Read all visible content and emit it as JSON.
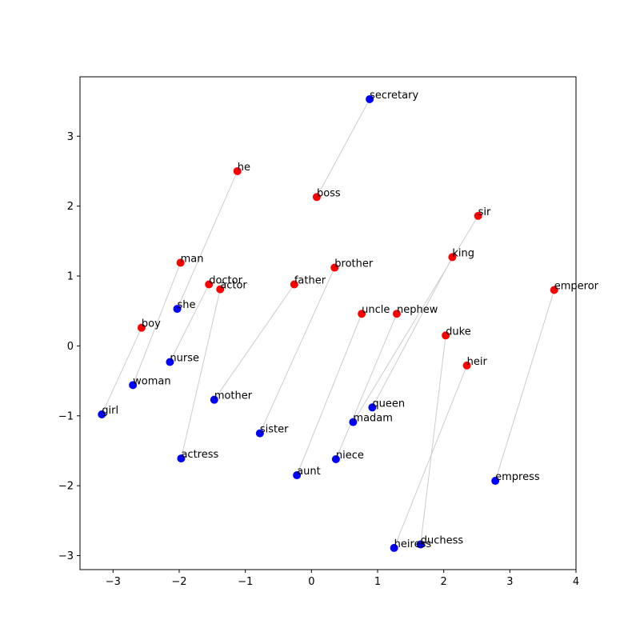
{
  "chart_data": {
    "type": "scatter",
    "title": "",
    "xlabel": "",
    "ylabel": "",
    "xlim": [
      -3.5,
      4.0
    ],
    "ylim": [
      -3.2,
      3.85
    ],
    "xticks": [
      -3,
      -2,
      -1,
      0,
      1,
      2,
      3,
      4
    ],
    "yticks": [
      -3,
      -2,
      -1,
      0,
      1,
      2,
      3
    ],
    "grid": false,
    "legend": "none",
    "colors": {
      "male": "#ff0000",
      "female": "#0000ff",
      "link": "#cccccc"
    },
    "series": [
      {
        "group": "male",
        "points": [
          {
            "label": "he",
            "x": -1.12,
            "y": 2.5
          },
          {
            "label": "boss",
            "x": 0.08,
            "y": 2.13
          },
          {
            "label": "man",
            "x": -1.98,
            "y": 1.19
          },
          {
            "label": "doctor",
            "x": -1.55,
            "y": 0.88
          },
          {
            "label": "actor",
            "x": -1.38,
            "y": 0.81
          },
          {
            "label": "father",
            "x": -0.26,
            "y": 0.88
          },
          {
            "label": "brother",
            "x": 0.35,
            "y": 1.12
          },
          {
            "label": "boy",
            "x": -2.57,
            "y": 0.26
          },
          {
            "label": "sir",
            "x": 2.52,
            "y": 1.86
          },
          {
            "label": "king",
            "x": 2.13,
            "y": 1.27
          },
          {
            "label": "uncle",
            "x": 0.76,
            "y": 0.46
          },
          {
            "label": "nephew",
            "x": 1.29,
            "y": 0.46
          },
          {
            "label": "duke",
            "x": 2.03,
            "y": 0.15
          },
          {
            "label": "heir",
            "x": 2.35,
            "y": -0.28
          },
          {
            "label": "emperor",
            "x": 3.67,
            "y": 0.8
          }
        ]
      },
      {
        "group": "female",
        "points": [
          {
            "label": "secretary",
            "x": 0.88,
            "y": 3.53
          },
          {
            "label": "she",
            "x": -2.03,
            "y": 0.53
          },
          {
            "label": "nurse",
            "x": -2.14,
            "y": -0.23
          },
          {
            "label": "woman",
            "x": -2.7,
            "y": -0.56
          },
          {
            "label": "girl",
            "x": -3.17,
            "y": -0.98
          },
          {
            "label": "mother",
            "x": -1.47,
            "y": -0.77
          },
          {
            "label": "sister",
            "x": -0.78,
            "y": -1.25
          },
          {
            "label": "actress",
            "x": -1.97,
            "y": -1.61
          },
          {
            "label": "aunt",
            "x": -0.22,
            "y": -1.85
          },
          {
            "label": "queen",
            "x": 0.92,
            "y": -0.88
          },
          {
            "label": "madam",
            "x": 0.63,
            "y": -1.09
          },
          {
            "label": "niece",
            "x": 0.37,
            "y": -1.62
          },
          {
            "label": "empress",
            "x": 2.78,
            "y": -1.93
          },
          {
            "label": "duchess",
            "x": 1.65,
            "y": -2.84
          },
          {
            "label": "heiress",
            "x": 1.25,
            "y": -2.89
          }
        ]
      }
    ],
    "pairs": [
      [
        "he",
        "she"
      ],
      [
        "boss",
        "secretary"
      ],
      [
        "man",
        "woman"
      ],
      [
        "doctor",
        "nurse"
      ],
      [
        "actor",
        "actress"
      ],
      [
        "father",
        "mother"
      ],
      [
        "brother",
        "sister"
      ],
      [
        "boy",
        "girl"
      ],
      [
        "sir",
        "madam"
      ],
      [
        "king",
        "queen"
      ],
      [
        "uncle",
        "aunt"
      ],
      [
        "nephew",
        "niece"
      ],
      [
        "duke",
        "duchess"
      ],
      [
        "heir",
        "heiress"
      ],
      [
        "emperor",
        "empress"
      ]
    ]
  }
}
